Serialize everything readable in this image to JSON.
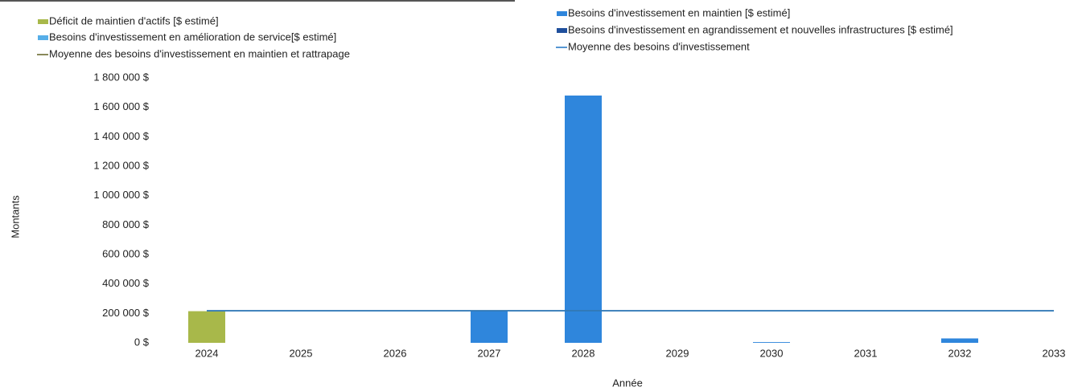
{
  "chart_data": {
    "type": "bar",
    "x_label": "Année",
    "y_label": "Montants",
    "categories": [
      "2024",
      "2025",
      "2026",
      "2027",
      "2028",
      "2029",
      "2030",
      "2031",
      "2032",
      "2033"
    ],
    "series": [
      {
        "name": "Déficit de maintien d'actifs [$ estimé]",
        "type": "bar",
        "color": "#a8b84a",
        "values": [
          215000,
          0,
          0,
          0,
          0,
          0,
          0,
          0,
          0,
          0
        ]
      },
      {
        "name": "Besoins d'investissement en maintien [$ estimé]",
        "type": "bar",
        "color": "#2f86dc",
        "values": [
          0,
          0,
          0,
          220000,
          1680000,
          0,
          5000,
          0,
          30000,
          0
        ]
      },
      {
        "name": "Besoins d'investissement en amélioration de service[$ estimé]",
        "type": "bar",
        "color": "#56aee8",
        "values": [
          0,
          0,
          0,
          0,
          0,
          0,
          0,
          0,
          0,
          0
        ]
      },
      {
        "name": "Besoins d'investissement en agrandissement et nouvelles infrastructures [$ estimé]",
        "type": "bar",
        "color": "#1f4f9c",
        "values": [
          0,
          0,
          0,
          0,
          0,
          0,
          0,
          0,
          0,
          0
        ]
      },
      {
        "name": "Moyenne des besoins d'investissement en maintien et rattrapage",
        "type": "line",
        "color": "#6b6b30",
        "values": [
          218000,
          218000,
          218000,
          218000,
          218000,
          218000,
          218000,
          218000,
          218000,
          218000
        ]
      },
      {
        "name": "Moyenne des besoins d'investissement",
        "type": "line",
        "color": "#2a7bc8",
        "values": [
          218000,
          218000,
          218000,
          218000,
          218000,
          218000,
          218000,
          218000,
          218000,
          218000
        ]
      }
    ],
    "ylim": [
      0,
      1800000
    ],
    "yticks": [
      {
        "value": 0,
        "label": "0 $"
      },
      {
        "value": 200000,
        "label": "200 000 $"
      },
      {
        "value": 400000,
        "label": "400 000 $"
      },
      {
        "value": 600000,
        "label": "600 000 $"
      },
      {
        "value": 800000,
        "label": "800 000 $"
      },
      {
        "value": 1000000,
        "label": "1 000 000 $"
      },
      {
        "value": 1200000,
        "label": "1 200 000 $"
      },
      {
        "value": 1400000,
        "label": "1 400 000 $"
      },
      {
        "value": 1600000,
        "label": "1 600 000 $"
      },
      {
        "value": 1800000,
        "label": "1 800 000 $"
      }
    ],
    "grid": false
  }
}
